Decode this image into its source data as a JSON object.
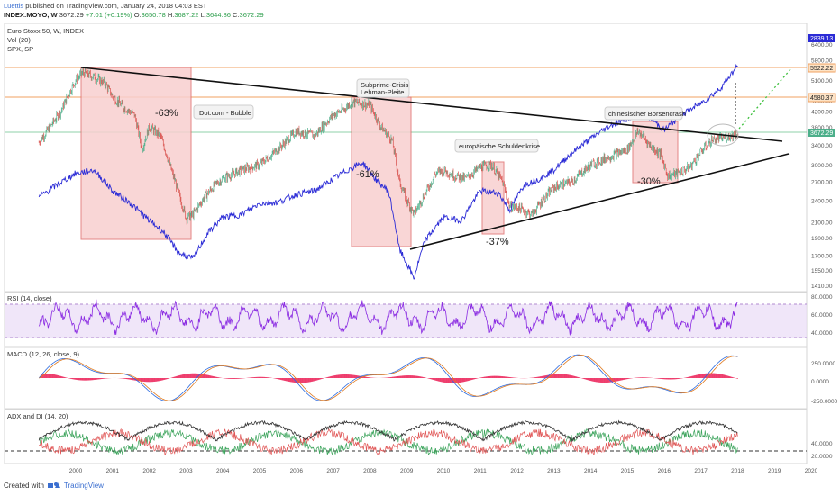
{
  "header": {
    "author": "Luettis",
    "published": "published on TradingView.com, January 24, 2018 04:03 EST",
    "symbol": "INDEX:MOYO, W",
    "price": "3672.29",
    "change": "+7.01 (+0.19%)",
    "o_label": "O:",
    "o_value": "3650.78",
    "h_label": "H:",
    "h_value": "3687.22",
    "l_label": "L:",
    "l_value": "3644.86",
    "c_label": "C:",
    "c_value": "3672.29"
  },
  "legend": {
    "main": "Euro Stoxx 50, W, INDEX",
    "vol": "Vol (20)",
    "spx": "SPX, SP"
  },
  "footer": {
    "created_with": "Created with",
    "brand": "TradingView"
  },
  "colors": {
    "candle_up": "#4caf8a",
    "candle_down": "#d9534f",
    "spx_line": "#2b2bd6",
    "box_fill": "#f8d0d0",
    "box_stroke": "#e07070",
    "rsi": "#8a2be2",
    "macd": "#2b6be0",
    "signal": "#e07a1f",
    "hist": "#ee3c6c",
    "adx": "#333333",
    "di_plus": "#3aa35a",
    "di_minus": "#e05555"
  },
  "annotations": [
    {
      "text": "-63%"
    },
    {
      "text": "Dot.com - Bubble"
    },
    {
      "text": "Subprime-Crisis"
    },
    {
      "text": "Lehman-Pleite"
    },
    {
      "text": "-61%"
    },
    {
      "text": "europäische Schuldenkrise"
    },
    {
      "text": "-37%"
    },
    {
      "text": "chinesischer Börsencrash"
    },
    {
      "text": "-30%"
    }
  ],
  "price_badges": [
    {
      "value": "2839.13"
    },
    {
      "value": "5522.22"
    },
    {
      "value": "4580.37"
    },
    {
      "value": "3672.29"
    }
  ],
  "panels": {
    "rsi": "RSI (14, close)",
    "macd": "MACD (12, 26, close, 9)",
    "adx": "ADX and DI (14, 20)"
  },
  "chart_data": {
    "type": "line",
    "x_ticks": [
      "2000",
      "2001",
      "2002",
      "2003",
      "2004",
      "2005",
      "2006",
      "2007",
      "2008",
      "2009",
      "2010",
      "2011",
      "2012",
      "2013",
      "2014",
      "2015",
      "2016",
      "2017",
      "2018",
      "2019",
      "2020",
      "202"
    ],
    "y_ticks": [
      "7200.00",
      "6400.00",
      "5800.00",
      "5100.00",
      "4500.00",
      "4200.00",
      "3800.00",
      "3400.00",
      "3000.00",
      "2700.00",
      "2400.00",
      "2100.00",
      "1900.00",
      "1700.00",
      "1550.00",
      "1410.00"
    ],
    "rsi_ticks": [
      "80.0000",
      "60.0000",
      "40.0000"
    ],
    "macd_ticks": [
      "250.0000",
      "0.0000",
      "-250.0000"
    ],
    "adx_ticks": [
      "40.0000",
      "20.0000"
    ],
    "eurostoxx": {
      "x": [
        1999.0,
        1999.3,
        1999.6,
        2000.0,
        2000.2,
        2000.5,
        2000.8,
        2001.0,
        2001.3,
        2001.6,
        2001.8,
        2002.0,
        2002.3,
        2002.6,
        2002.8,
        2003.0,
        2003.2,
        2003.5,
        2003.8,
        2004.0,
        2004.5,
        2005.0,
        2005.5,
        2006.0,
        2006.5,
        2007.0,
        2007.3,
        2007.5,
        2007.8,
        2008.0,
        2008.3,
        2008.6,
        2008.8,
        2009.0,
        2009.2,
        2009.5,
        2009.8,
        2010.0,
        2010.3,
        2010.6,
        2011.0,
        2011.3,
        2011.6,
        2011.8,
        2012.0,
        2012.4,
        2012.7,
        2013.0,
        2013.5,
        2014.0,
        2014.5,
        2015.0,
        2015.3,
        2015.6,
        2015.9,
        2016.1,
        2016.4,
        2016.7,
        2017.0,
        2017.3,
        2017.6,
        2018.0
      ],
      "y": [
        3450,
        3800,
        4200,
        5100,
        5350,
        5200,
        5000,
        4600,
        4300,
        4100,
        3300,
        3800,
        3600,
        2900,
        2500,
        2150,
        2200,
        2450,
        2650,
        2750,
        2900,
        3000,
        3300,
        3700,
        3600,
        4100,
        4250,
        4450,
        4400,
        4350,
        3800,
        3500,
        2700,
        2400,
        2200,
        2500,
        2850,
        2900,
        2800,
        2750,
        2950,
        3000,
        2700,
        2300,
        2300,
        2200,
        2400,
        2600,
        2700,
        3000,
        3150,
        3300,
        3700,
        3400,
        3200,
        2800,
        2850,
        2950,
        3250,
        3500,
        3550,
        3650
      ]
    },
    "spx": {
      "x": [
        1999.0,
        1999.5,
        2000.0,
        2000.5,
        2001.0,
        2001.5,
        2001.9,
        2002.4,
        2002.8,
        2003.2,
        2003.6,
        2004.0,
        2004.5,
        2005.0,
        2005.5,
        2006.0,
        2006.5,
        2007.0,
        2007.5,
        2007.8,
        2008.2,
        2008.5,
        2008.8,
        2009.2,
        2009.5,
        2010.0,
        2010.5,
        2011.0,
        2011.5,
        2011.8,
        2012.2,
        2012.6,
        2013.0,
        2013.5,
        2014.0,
        2014.5,
        2015.0,
        2015.5,
        2016.0,
        2016.5,
        2017.0,
        2017.5,
        2018.0
      ],
      "y": [
        1250,
        1350,
        1450,
        1480,
        1300,
        1200,
        1100,
        1000,
        880,
        850,
        1000,
        1100,
        1120,
        1200,
        1210,
        1270,
        1300,
        1400,
        1500,
        1550,
        1380,
        1300,
        900,
        750,
        950,
        1100,
        1080,
        1300,
        1280,
        1150,
        1350,
        1400,
        1480,
        1650,
        1800,
        1950,
        2050,
        2100,
        1900,
        2100,
        2250,
        2450,
        2839
      ]
    }
  }
}
